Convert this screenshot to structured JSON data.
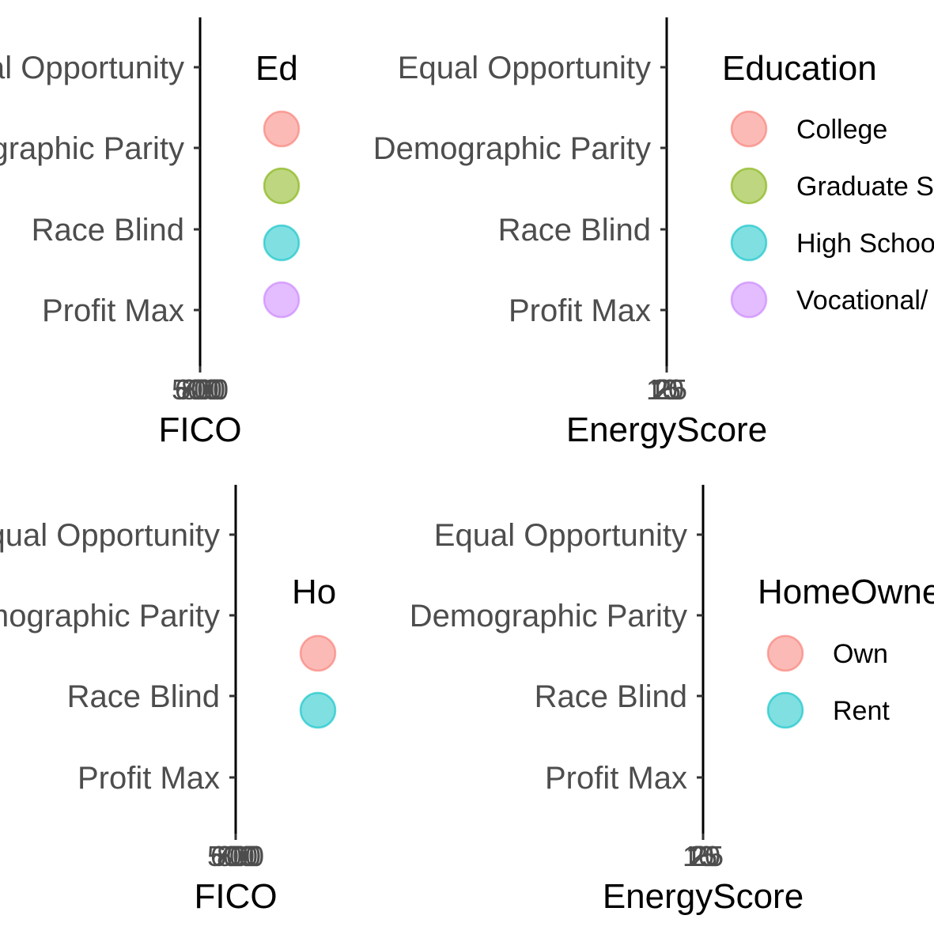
{
  "chart_data": [
    {
      "type": "scatter",
      "title": "",
      "xlabel": "FICO",
      "ylabel": "",
      "categories": [
        "Equal Opportunity",
        "Demographic Parity",
        "Race Blind",
        "Profit Max"
      ],
      "x_tick_labels": [
        "500",
        "600",
        "700",
        "800"
      ],
      "legend": {
        "title": "Ed",
        "placement": "right",
        "entries": [
          {
            "label": "",
            "color": "#F8766D"
          },
          {
            "label": "",
            "color": "#7CAE00"
          },
          {
            "label": "",
            "color": "#00BFC4"
          },
          {
            "label": "",
            "color": "#C77CFF"
          }
        ]
      },
      "series": [],
      "grid": false
    },
    {
      "type": "scatter",
      "title": "",
      "xlabel": "EnergyScore",
      "ylabel": "",
      "categories": [
        "Equal Opportunity",
        "Demographic Parity",
        "Race Blind",
        "Profit Max"
      ],
      "x_tick_labels": [
        "10",
        "15",
        "20",
        "25"
      ],
      "legend": {
        "title": "Education",
        "placement": "right",
        "entries": [
          {
            "label": "College",
            "color": "#F8766D"
          },
          {
            "label": "Graduate S",
            "color": "#7CAE00"
          },
          {
            "label": "High Schoo",
            "color": "#00BFC4"
          },
          {
            "label": "Vocational/",
            "color": "#C77CFF"
          }
        ]
      },
      "series": [],
      "grid": false
    },
    {
      "type": "scatter",
      "title": "",
      "xlabel": "FICO",
      "ylabel": "",
      "categories": [
        "Equal Opportunity",
        "Demographic Parity",
        "Race Blind",
        "Profit Max"
      ],
      "x_tick_labels": [
        "500",
        "600",
        "700",
        "800"
      ],
      "legend": {
        "title": "Ho",
        "placement": "right",
        "entries": [
          {
            "label": "",
            "color": "#F8766D"
          },
          {
            "label": "",
            "color": "#00BFC4"
          }
        ]
      },
      "series": [],
      "grid": false
    },
    {
      "type": "scatter",
      "title": "",
      "xlabel": "EnergyScore",
      "ylabel": "",
      "categories": [
        "Equal Opportunity",
        "Demographic Parity",
        "Race Blind",
        "Profit Max"
      ],
      "x_tick_labels": [
        "10",
        "15",
        "20",
        "25"
      ],
      "legend": {
        "title": "HomeOwne",
        "placement": "right",
        "entries": [
          {
            "label": "Own",
            "color": "#F8766D"
          },
          {
            "label": "Rent",
            "color": "#00BFC4"
          }
        ]
      },
      "series": [],
      "grid": false
    }
  ]
}
